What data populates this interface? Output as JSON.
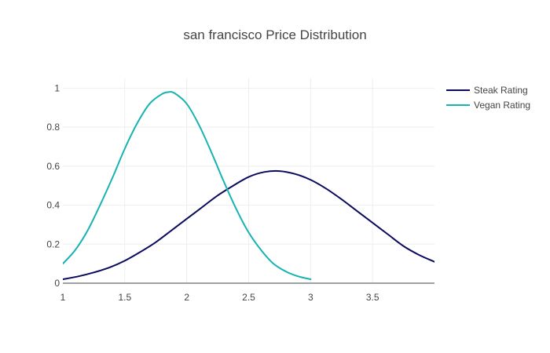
{
  "chart_data": {
    "type": "line",
    "title": "san francisco Price Distribution",
    "xlabel": "",
    "ylabel": "",
    "xlim": [
      1,
      4
    ],
    "ylim": [
      0,
      1.05
    ],
    "x_ticks": [
      1,
      1.5,
      2,
      2.5,
      3,
      3.5
    ],
    "x_tick_labels": [
      "1",
      "1.5",
      "2",
      "2.5",
      "3",
      "3.5"
    ],
    "y_ticks": [
      0,
      0.2,
      0.4,
      0.6,
      0.8,
      1
    ],
    "y_tick_labels": [
      "0",
      "0.2",
      "0.4",
      "0.6",
      "0.8",
      "1"
    ],
    "grid": true,
    "legend_position": "top-right",
    "series": [
      {
        "name": "Steak Rating",
        "color": "#0a0a5e",
        "x": [
          1.0,
          1.125,
          1.25,
          1.375,
          1.5,
          1.625,
          1.75,
          1.875,
          2.0,
          2.125,
          2.25,
          2.375,
          2.5,
          2.625,
          2.75,
          2.875,
          3.0,
          3.125,
          3.25,
          3.375,
          3.5,
          3.625,
          3.75,
          3.875,
          4.0
        ],
        "y": [
          0.02,
          0.035,
          0.055,
          0.08,
          0.115,
          0.16,
          0.21,
          0.27,
          0.33,
          0.39,
          0.45,
          0.5,
          0.545,
          0.57,
          0.575,
          0.56,
          0.53,
          0.485,
          0.43,
          0.37,
          0.31,
          0.25,
          0.19,
          0.145,
          0.11
        ]
      },
      {
        "name": "Vegan Rating",
        "color": "#17b3b3",
        "x": [
          1.0,
          1.1,
          1.2,
          1.3,
          1.4,
          1.5,
          1.6,
          1.7,
          1.8,
          1.85,
          1.9,
          2.0,
          2.1,
          2.2,
          2.3,
          2.4,
          2.5,
          2.6,
          2.7,
          2.8,
          2.9,
          3.0
        ],
        "y": [
          0.1,
          0.17,
          0.27,
          0.4,
          0.54,
          0.69,
          0.82,
          0.92,
          0.97,
          0.98,
          0.975,
          0.92,
          0.81,
          0.67,
          0.52,
          0.38,
          0.26,
          0.17,
          0.1,
          0.06,
          0.035,
          0.02
        ]
      }
    ]
  }
}
